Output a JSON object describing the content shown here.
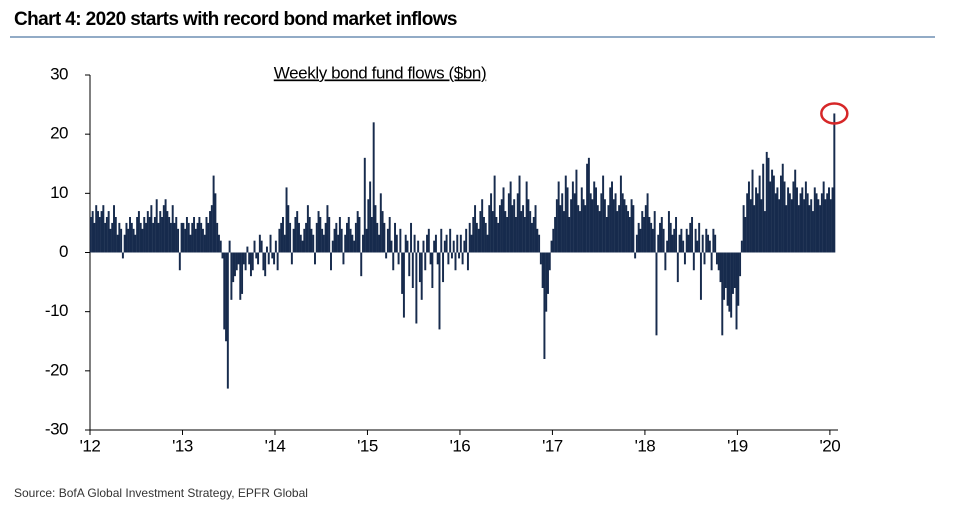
{
  "chart_data": {
    "type": "bar",
    "title": "Chart 4: 2020 starts with record bond market inflows",
    "subtitle": "Weekly  bond fund flows ($bn)",
    "source": "Source:  BofA Global Investment Strategy, EPFR Global",
    "color": "#172b4d",
    "highlight_color": "#d62728",
    "ylim": [
      -30,
      30
    ],
    "yticks": [
      -30,
      -20,
      -10,
      0,
      10,
      20,
      30
    ],
    "xlim": [
      0,
      420
    ],
    "xticks": [
      {
        "value": 0,
        "label": "'12"
      },
      {
        "value": 52,
        "label": "'13"
      },
      {
        "value": 104,
        "label": "'14"
      },
      {
        "value": 156,
        "label": "'15"
      },
      {
        "value": 208,
        "label": "'16"
      },
      {
        "value": 260,
        "label": "'17"
      },
      {
        "value": 312,
        "label": "'18"
      },
      {
        "value": 364,
        "label": "'19"
      },
      {
        "value": 416,
        "label": "'20"
      }
    ],
    "values": [
      6,
      7,
      5,
      8,
      7,
      6,
      7,
      8,
      5,
      6,
      7,
      4,
      5,
      8,
      6,
      3,
      5,
      4,
      -1,
      3,
      5,
      4,
      6,
      5,
      4,
      3,
      6,
      7,
      5,
      4,
      6,
      5,
      7,
      6,
      8,
      5,
      6,
      9,
      5,
      7,
      6,
      8,
      9,
      7,
      6,
      5,
      8,
      5,
      6,
      4,
      -3,
      5,
      5,
      4,
      6,
      5,
      3,
      5,
      6,
      4,
      5,
      6,
      5,
      4,
      3,
      6,
      5,
      7,
      8,
      13,
      10,
      5,
      3,
      2,
      -1,
      -13,
      -15,
      -23,
      2,
      -8,
      -5,
      -4,
      -3,
      -2,
      -8,
      -7,
      -2,
      -3,
      1,
      -2,
      -4,
      -3,
      2,
      -1,
      -2,
      3,
      2,
      -3,
      -4,
      1,
      -2,
      3,
      -1,
      -2,
      2,
      -3,
      4,
      5,
      6,
      3,
      11,
      8,
      5,
      -2,
      4,
      6,
      7,
      5,
      3,
      2,
      4,
      5,
      8,
      6,
      4,
      3,
      -2,
      5,
      7,
      6,
      4,
      3,
      5,
      8,
      6,
      -3,
      2,
      4,
      5,
      3,
      6,
      4,
      -2,
      3,
      5,
      6,
      4,
      3,
      2,
      5,
      7,
      6,
      -4,
      3,
      16,
      4,
      9,
      12,
      6,
      22,
      8,
      5,
      3,
      10,
      7,
      5,
      -1,
      4,
      6,
      2,
      -3,
      5,
      3,
      -2,
      4,
      -7,
      -11,
      3,
      2,
      -4,
      5,
      -6,
      3,
      -12,
      2,
      -5,
      -8,
      2,
      -3,
      3,
      4,
      -2,
      -6,
      2,
      3,
      -2,
      -13,
      4,
      -5,
      2,
      3,
      -2,
      4,
      -1,
      2,
      -3,
      3,
      -1,
      3,
      -2,
      2,
      4,
      -3,
      5,
      3,
      6,
      8,
      5,
      4,
      7,
      9,
      6,
      5,
      3,
      8,
      10,
      7,
      13,
      6,
      5,
      8,
      9,
      11,
      7,
      6,
      10,
      12,
      8,
      9,
      6,
      10,
      13,
      7,
      8,
      6,
      12,
      9,
      7,
      5,
      6,
      8,
      4,
      3,
      -2,
      -6,
      -18,
      -10,
      -7,
      -3,
      2,
      4,
      6,
      9,
      12,
      8,
      10,
      7,
      13,
      11,
      6,
      9,
      12,
      10,
      14,
      8,
      7,
      11,
      9,
      8,
      15,
      16,
      10,
      9,
      12,
      11,
      8,
      7,
      10,
      13,
      9,
      6,
      8,
      11,
      12,
      9,
      10,
      7,
      8,
      13,
      10,
      9,
      8,
      7,
      6,
      9,
      8,
      -1,
      3,
      5,
      4,
      7,
      6,
      8,
      10,
      6,
      5,
      4,
      7,
      -14,
      3,
      5,
      6,
      4,
      -3,
      2,
      7,
      5,
      3,
      4,
      6,
      -5,
      3,
      4,
      2,
      -2,
      4,
      3,
      5,
      6,
      -3,
      4,
      2,
      5,
      -8,
      3,
      -2,
      4,
      3,
      2,
      -3,
      4,
      3,
      -2,
      -3,
      -5,
      -14,
      -8,
      -6,
      -9,
      -10,
      -11,
      -7,
      -6,
      -13,
      -9,
      -4,
      2,
      8,
      6,
      10,
      12,
      9,
      14,
      8,
      11,
      10,
      13,
      9,
      15,
      7,
      17,
      16,
      12,
      14,
      13,
      10,
      11,
      9,
      13,
      15,
      12,
      8,
      11,
      10,
      9,
      12,
      14,
      11,
      8,
      10,
      11,
      9,
      12,
      10,
      8,
      9,
      7,
      11,
      10,
      9,
      8,
      10,
      12,
      9,
      10,
      11,
      9,
      11,
      23.5
    ]
  }
}
